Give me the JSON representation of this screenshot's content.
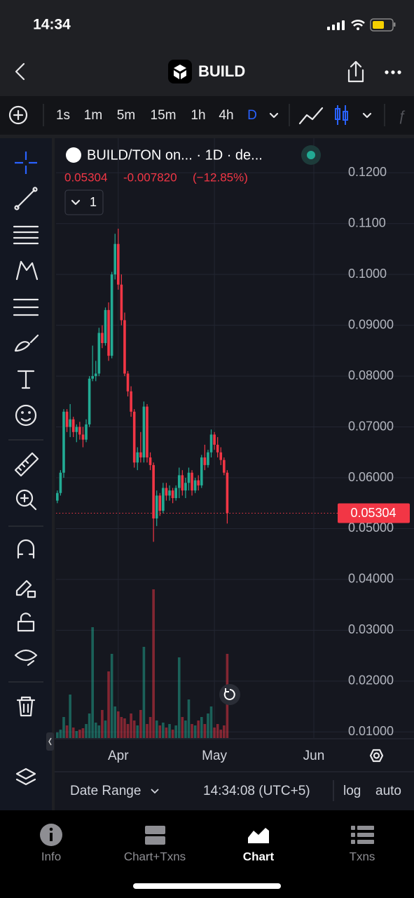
{
  "status": {
    "time": "14:34"
  },
  "header": {
    "title": "BUILD"
  },
  "toolbar": {
    "intervals": [
      "1s",
      "1m",
      "5m",
      "15m",
      "1h",
      "4h",
      "D"
    ],
    "active_interval": "D"
  },
  "chart_data": {
    "type": "candlestick",
    "title": "BUILD/TON on... · 1D · de...",
    "legend": {
      "close": "0.05304",
      "change": "-0.007820",
      "change_pct": "(−12.85%)",
      "indicators": "1"
    },
    "last_price": 0.05304,
    "candles": {
      "open": [
        0.0555,
        0.057,
        0.061,
        0.073,
        0.07,
        0.0715,
        0.069,
        0.07,
        0.0685,
        0.0675,
        0.0705,
        0.0795,
        0.08,
        0.0805,
        0.0885,
        0.0865,
        0.093,
        0.084,
        0.1,
        0.106,
        0.098,
        0.091,
        0.0805,
        0.077,
        0.073,
        0.063,
        0.065,
        0.064,
        0.074,
        0.064,
        0.0625,
        0.052,
        0.0565,
        0.0535,
        0.058,
        0.0565,
        0.0575,
        0.056,
        0.058,
        0.0605,
        0.0575,
        0.059,
        0.061,
        0.0575,
        0.0595,
        0.0585,
        0.064,
        0.0625,
        0.065,
        0.0685,
        0.0665,
        0.065,
        0.0635,
        0.061
      ],
      "high": [
        0.0575,
        0.0615,
        0.0735,
        0.0735,
        0.0745,
        0.072,
        0.0705,
        0.071,
        0.07,
        0.0715,
        0.08,
        0.086,
        0.083,
        0.0895,
        0.09,
        0.0935,
        0.0945,
        0.1005,
        0.108,
        0.109,
        0.1,
        0.0925,
        0.081,
        0.078,
        0.0735,
        0.066,
        0.069,
        0.075,
        0.0745,
        0.065,
        0.063,
        0.0575,
        0.057,
        0.059,
        0.059,
        0.0585,
        0.058,
        0.0585,
        0.062,
        0.0615,
        0.06,
        0.062,
        0.0615,
        0.06,
        0.0605,
        0.0645,
        0.0665,
        0.0655,
        0.0695,
        0.069,
        0.068,
        0.066,
        0.064,
        0.0615
      ],
      "low": [
        0.055,
        0.0565,
        0.06,
        0.069,
        0.068,
        0.068,
        0.067,
        0.0675,
        0.066,
        0.067,
        0.07,
        0.079,
        0.079,
        0.08,
        0.0855,
        0.086,
        0.083,
        0.0835,
        0.099,
        0.097,
        0.09,
        0.08,
        0.076,
        0.072,
        0.062,
        0.0615,
        0.063,
        0.063,
        0.063,
        0.0615,
        0.0474,
        0.0505,
        0.0525,
        0.053,
        0.0555,
        0.0555,
        0.055,
        0.0555,
        0.056,
        0.0565,
        0.056,
        0.0575,
        0.0565,
        0.057,
        0.0575,
        0.058,
        0.0615,
        0.062,
        0.064,
        0.0655,
        0.064,
        0.0625,
        0.0605,
        0.051
      ],
      "close": [
        0.057,
        0.061,
        0.073,
        0.07,
        0.0715,
        0.069,
        0.07,
        0.0685,
        0.0675,
        0.0705,
        0.0795,
        0.08,
        0.0805,
        0.0885,
        0.0865,
        0.093,
        0.084,
        0.1,
        0.106,
        0.098,
        0.091,
        0.0805,
        0.077,
        0.073,
        0.063,
        0.065,
        0.064,
        0.074,
        0.064,
        0.0625,
        0.052,
        0.0565,
        0.0535,
        0.058,
        0.0565,
        0.0575,
        0.056,
        0.058,
        0.0605,
        0.0575,
        0.059,
        0.061,
        0.0575,
        0.0595,
        0.0585,
        0.064,
        0.0625,
        0.065,
        0.0685,
        0.0665,
        0.065,
        0.0635,
        0.061,
        0.05304
      ]
    },
    "volume": [
      8,
      12,
      30,
      18,
      62,
      15,
      10,
      12,
      14,
      20,
      35,
      158,
      22,
      18,
      40,
      25,
      95,
      120,
      45,
      38,
      30,
      28,
      20,
      35,
      25,
      18,
      40,
      130,
      20,
      30,
      212,
      25,
      18,
      22,
      15,
      20,
      12,
      18,
      115,
      30,
      25,
      55,
      20,
      18,
      25,
      30,
      20,
      35,
      45,
      15,
      20,
      12,
      18,
      120
    ],
    "up_color": "#22ab94",
    "down_color": "#f23645",
    "ylim": [
      0.0088,
      0.1268
    ],
    "yticks": [
      {
        "value": 0.12,
        "label": "0.1200"
      },
      {
        "value": 0.11,
        "label": "0.1100"
      },
      {
        "value": 0.1,
        "label": "0.1000"
      },
      {
        "value": 0.09,
        "label": "0.09000"
      },
      {
        "value": 0.08,
        "label": "0.08000"
      },
      {
        "value": 0.07,
        "label": "0.07000"
      },
      {
        "value": 0.06,
        "label": "0.06000"
      },
      {
        "value": 0.05,
        "label": "0.05000"
      },
      {
        "value": 0.04,
        "label": "0.04000"
      },
      {
        "value": 0.03,
        "label": "0.03000"
      },
      {
        "value": 0.02,
        "label": "0.02000"
      },
      {
        "value": 0.01,
        "label": "0.01000"
      }
    ],
    "xlim": [
      -0.4,
      87
    ],
    "xticks": [
      {
        "value": 19,
        "label": "Apr"
      },
      {
        "value": 49,
        "label": "May"
      },
      {
        "value": 80,
        "label": "Jun"
      }
    ],
    "grid": true
  },
  "bottom_bar": {
    "date_range": "Date Range",
    "clock": "14:34:08 (UTC+5)",
    "log": "log",
    "auto": "auto"
  },
  "tabs": [
    "Info",
    "Chart+Txns",
    "Chart",
    "Txns"
  ],
  "active_tab": "Chart"
}
